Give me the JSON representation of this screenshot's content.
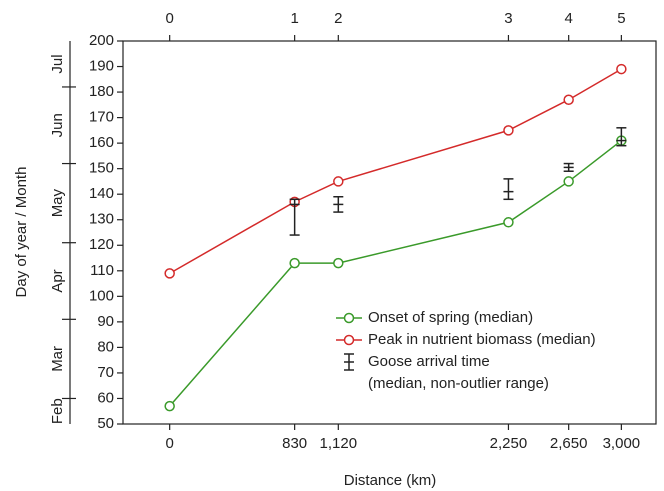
{
  "chart_data": {
    "type": "line",
    "xlabel": "Distance (km)",
    "ylabel": "Day of year / Month",
    "xlim": [
      -310,
      3230
    ],
    "ylim": [
      50,
      200
    ],
    "xticks": [
      0,
      830,
      {
        "value": 1120,
        "label": "1,120"
      },
      {
        "value": 2250,
        "label": "2,250"
      },
      {
        "value": 2650,
        "label": "2,650"
      },
      {
        "value": 3000,
        "label": "3,000"
      }
    ],
    "x2ticks": [
      0,
      {
        "value": 830,
        "label": "1"
      },
      {
        "value": 1120,
        "label": "2"
      },
      {
        "value": 2250,
        "label": "3"
      },
      {
        "value": 2650,
        "label": "4"
      },
      {
        "value": 3000,
        "label": "5"
      }
    ],
    "yticks": [
      50,
      60,
      70,
      80,
      90,
      100,
      110,
      120,
      130,
      140,
      150,
      160,
      170,
      180,
      190,
      200
    ],
    "months": [
      "Feb",
      "Mar",
      "Apr",
      "May",
      "Jun",
      "Jul"
    ],
    "month_boundaries": [
      60,
      91,
      121,
      152,
      182
    ],
    "legend": "lower right",
    "x": [
      0,
      830,
      1120,
      2250,
      2650,
      3000
    ],
    "series": [
      {
        "name": "Onset of spring (median)",
        "color": "#3a9a2a",
        "values": [
          57,
          113,
          113,
          129,
          145,
          161
        ]
      },
      {
        "name": "Peak in nutrient biomass (median)",
        "color": "#d42a2a",
        "values": [
          109,
          137,
          145,
          165,
          177,
          189
        ]
      },
      {
        "type": "errorbar",
        "name": "Goose arrival time",
        "description": "(median, non-outlier range)",
        "color": "#222222",
        "x": [
          830,
          1120,
          2250,
          2650,
          3000
        ],
        "values": [
          136,
          136,
          141,
          150.5,
          161
        ],
        "low": [
          124,
          133,
          138,
          149,
          159
        ],
        "high": [
          138,
          139,
          146,
          152,
          166
        ]
      }
    ]
  }
}
